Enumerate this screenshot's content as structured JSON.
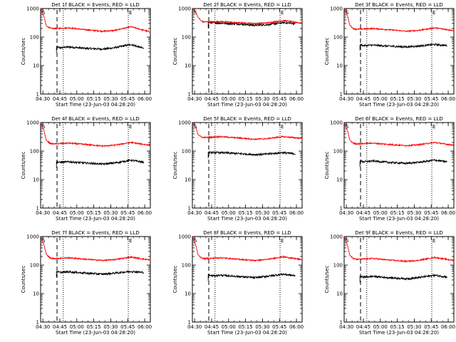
{
  "colors": {
    "events": "#000000",
    "lld": "#ff0000",
    "axis": "#000000",
    "background": "#ffffff"
  },
  "chart_data": [
    {
      "type": "line",
      "title": "Det 1f BLACK = Events, RED = LLD",
      "xlabel": "Start Time (23-Jun-03 04:28:20)",
      "ylabel": "Counts/sec",
      "x_tick_labels": [
        "04:30",
        "04:45",
        "05:00",
        "05:15",
        "05:30",
        "05:45",
        "06:00"
      ],
      "y_tick_labels": [
        "1",
        "10",
        "100",
        "1000"
      ],
      "yscale": "log",
      "ylim": [
        1,
        1000
      ],
      "xlim_minutes": [
        0,
        97
      ],
      "marker_labels": [
        "S",
        "E"
      ],
      "series": [
        {
          "name": "Events",
          "color": "black",
          "x_minutes": [
            14,
            17,
            25,
            40,
            55,
            65,
            80,
            91
          ],
          "values": [
            45,
            42,
            45,
            40,
            38,
            42,
            55,
            40
          ]
        },
        {
          "name": "LLD",
          "color": "red",
          "x_minutes": [
            0,
            3,
            5,
            8,
            10,
            14,
            25,
            40,
            55,
            65,
            80,
            92,
            97
          ],
          "values": [
            1000,
            520,
            250,
            210,
            200,
            200,
            210,
            180,
            160,
            170,
            230,
            170,
            150
          ]
        }
      ]
    },
    {
      "type": "line",
      "title": "Det 2f BLACK = Events, RED = LLD",
      "xlabel": "Start Time (23-Jun-03 04:28:20)",
      "ylabel": "Counts/sec",
      "x_tick_labels": [
        "04:30",
        "04:45",
        "05:00",
        "05:15",
        "05:30",
        "05:45",
        "06:00"
      ],
      "y_tick_labels": [
        "1",
        "10",
        "100",
        "1000"
      ],
      "yscale": "log",
      "ylim": [
        1,
        1000
      ],
      "xlim_minutes": [
        0,
        97
      ],
      "marker_labels": [
        "S",
        "E"
      ],
      "series": [
        {
          "name": "Events",
          "color": "black",
          "x_minutes": [
            14,
            17,
            25,
            40,
            55,
            65,
            80,
            91
          ],
          "values": [
            330,
            320,
            310,
            290,
            260,
            270,
            320,
            300
          ]
        },
        {
          "name": "LLD",
          "color": "red",
          "x_minutes": [
            0,
            3,
            5,
            8,
            10,
            14,
            25,
            40,
            55,
            65,
            80,
            92,
            97
          ],
          "values": [
            1000,
            750,
            500,
            360,
            340,
            340,
            350,
            320,
            300,
            310,
            380,
            330,
            300
          ]
        }
      ]
    },
    {
      "type": "line",
      "title": "Det 3f BLACK = Events, RED = LLD",
      "xlabel": "Start Time (23-Jun-03 04:28:20)",
      "ylabel": "Counts/sec",
      "x_tick_labels": [
        "04:30",
        "04:45",
        "05:00",
        "05:15",
        "05:30",
        "05:45",
        "06:00"
      ],
      "y_tick_labels": [
        "1",
        "10",
        "100",
        "1000"
      ],
      "yscale": "log",
      "ylim": [
        1,
        1000
      ],
      "xlim_minutes": [
        0,
        97
      ],
      "marker_labels": [
        "S",
        "E"
      ],
      "series": [
        {
          "name": "Events",
          "color": "black",
          "x_minutes": [
            14,
            17,
            25,
            40,
            55,
            65,
            80,
            91
          ],
          "values": [
            55,
            50,
            52,
            48,
            45,
            48,
            55,
            50
          ]
        },
        {
          "name": "LLD",
          "color": "red",
          "x_minutes": [
            0,
            3,
            5,
            8,
            10,
            14,
            25,
            40,
            55,
            65,
            80,
            92,
            97
          ],
          "values": [
            1000,
            550,
            260,
            200,
            190,
            190,
            200,
            180,
            160,
            170,
            210,
            180,
            170
          ]
        }
      ]
    },
    {
      "type": "line",
      "title": "Det 4f BLACK = Events, RED = LLD",
      "xlabel": "Start Time (23-Jun-03 04:28:20)",
      "ylabel": "Counts/sec",
      "x_tick_labels": [
        "04:30",
        "04:45",
        "05:00",
        "05:15",
        "05:30",
        "05:45",
        "06:00"
      ],
      "y_tick_labels": [
        "1",
        "10",
        "100",
        "1000"
      ],
      "yscale": "log",
      "ylim": [
        1,
        1000
      ],
      "xlim_minutes": [
        0,
        97
      ],
      "marker_labels": [
        "S",
        "E"
      ],
      "series": [
        {
          "name": "Events",
          "color": "black",
          "x_minutes": [
            14,
            17,
            25,
            40,
            55,
            65,
            80,
            91
          ],
          "values": [
            42,
            40,
            42,
            38,
            35,
            38,
            48,
            40
          ]
        },
        {
          "name": "LLD",
          "color": "red",
          "x_minutes": [
            0,
            3,
            5,
            8,
            10,
            14,
            25,
            40,
            55,
            65,
            80,
            92,
            97
          ],
          "values": [
            1000,
            520,
            240,
            190,
            180,
            180,
            190,
            170,
            150,
            160,
            200,
            170,
            160
          ]
        }
      ]
    },
    {
      "type": "line",
      "title": "Det 5f BLACK = Events, RED = LLD",
      "xlabel": "Start Time (23-Jun-03 04:28:20)",
      "ylabel": "Counts/sec",
      "x_tick_labels": [
        "04:30",
        "04:45",
        "05:00",
        "05:15",
        "05:30",
        "05:45",
        "06:00"
      ],
      "y_tick_labels": [
        "1",
        "10",
        "100",
        "1000"
      ],
      "yscale": "log",
      "ylim": [
        1,
        1000
      ],
      "xlim_minutes": [
        0,
        97
      ],
      "marker_labels": [
        "S",
        "E"
      ],
      "series": [
        {
          "name": "Events",
          "color": "black",
          "x_minutes": [
            14,
            17,
            25,
            40,
            55,
            65,
            80,
            91
          ],
          "values": [
            90,
            88,
            88,
            82,
            75,
            78,
            88,
            80
          ]
        },
        {
          "name": "LLD",
          "color": "red",
          "x_minutes": [
            0,
            3,
            5,
            8,
            10,
            14,
            25,
            40,
            55,
            65,
            80,
            92,
            97
          ],
          "values": [
            1000,
            700,
            380,
            310,
            300,
            300,
            320,
            290,
            260,
            270,
            320,
            290,
            280
          ]
        }
      ]
    },
    {
      "type": "line",
      "title": "Det 6f BLACK = Events, RED = LLD",
      "xlabel": "Start Time (23-Jun-03 04:28:20)",
      "ylabel": "Counts/sec",
      "x_tick_labels": [
        "04:30",
        "04:45",
        "05:00",
        "05:15",
        "05:30",
        "05:45",
        "06:00"
      ],
      "y_tick_labels": [
        "1",
        "10",
        "100",
        "1000"
      ],
      "yscale": "log",
      "ylim": [
        1,
        1000
      ],
      "xlim_minutes": [
        0,
        97
      ],
      "marker_labels": [
        "S",
        "E"
      ],
      "series": [
        {
          "name": "Events",
          "color": "black",
          "x_minutes": [
            14,
            17,
            25,
            40,
            55,
            65,
            80,
            91
          ],
          "values": [
            45,
            42,
            45,
            40,
            37,
            40,
            48,
            42
          ]
        },
        {
          "name": "LLD",
          "color": "red",
          "x_minutes": [
            0,
            3,
            5,
            8,
            10,
            14,
            25,
            40,
            55,
            65,
            80,
            92,
            97
          ],
          "values": [
            1000,
            520,
            240,
            190,
            180,
            180,
            190,
            170,
            155,
            165,
            200,
            170,
            160
          ]
        }
      ]
    },
    {
      "type": "line",
      "title": "Det 7f BLACK = Events, RED = LLD",
      "xlabel": "Start Time (23-Jun-03 04:28:20)",
      "ylabel": "Counts/sec",
      "x_tick_labels": [
        "04:30",
        "04:45",
        "05:00",
        "05:15",
        "05:30",
        "05:45",
        "06:00"
      ],
      "y_tick_labels": [
        "1",
        "10",
        "100",
        "1000"
      ],
      "yscale": "log",
      "ylim": [
        1,
        1000
      ],
      "xlim_minutes": [
        0,
        97
      ],
      "marker_labels": [
        "S",
        "E"
      ],
      "series": [
        {
          "name": "Events",
          "color": "black",
          "x_minutes": [
            14,
            17,
            25,
            40,
            55,
            65,
            80,
            91
          ],
          "values": [
            60,
            55,
            58,
            52,
            48,
            52,
            60,
            55
          ]
        },
        {
          "name": "LLD",
          "color": "red",
          "x_minutes": [
            0,
            3,
            5,
            8,
            10,
            14,
            25,
            40,
            55,
            65,
            80,
            92,
            97
          ],
          "values": [
            1000,
            520,
            240,
            180,
            170,
            170,
            180,
            160,
            145,
            155,
            190,
            160,
            150
          ]
        }
      ]
    },
    {
      "type": "line",
      "title": "Det 8f BLACK = Events, RED = LLD",
      "xlabel": "Start Time (23-Jun-03 04:28:20)",
      "ylabel": "Counts/sec",
      "x_tick_labels": [
        "04:30",
        "04:45",
        "05:00",
        "05:15",
        "05:30",
        "05:45",
        "06:00"
      ],
      "y_tick_labels": [
        "1",
        "10",
        "100",
        "1000"
      ],
      "yscale": "log",
      "ylim": [
        1,
        1000
      ],
      "xlim_minutes": [
        0,
        97
      ],
      "marker_labels": [
        "S",
        "E"
      ],
      "series": [
        {
          "name": "Events",
          "color": "black",
          "x_minutes": [
            14,
            17,
            25,
            40,
            55,
            65,
            80,
            91
          ],
          "values": [
            45,
            42,
            44,
            40,
            36,
            40,
            48,
            42
          ]
        },
        {
          "name": "LLD",
          "color": "red",
          "x_minutes": [
            0,
            3,
            5,
            8,
            10,
            14,
            25,
            40,
            55,
            65,
            80,
            92,
            97
          ],
          "values": [
            1000,
            500,
            230,
            180,
            170,
            170,
            180,
            160,
            145,
            155,
            195,
            165,
            155
          ]
        }
      ]
    },
    {
      "type": "line",
      "title": "Det 9f BLACK = Events, RED = LLD",
      "xlabel": "Start Time (23-Jun-03 04:28:20)",
      "ylabel": "Counts/sec",
      "x_tick_labels": [
        "04:30",
        "04:45",
        "05:00",
        "05:15",
        "05:30",
        "05:45",
        "06:00"
      ],
      "y_tick_labels": [
        "1",
        "10",
        "100",
        "1000"
      ],
      "yscale": "log",
      "ylim": [
        1,
        1000
      ],
      "xlim_minutes": [
        0,
        97
      ],
      "marker_labels": [
        "S",
        "E"
      ],
      "series": [
        {
          "name": "Events",
          "color": "black",
          "x_minutes": [
            14,
            17,
            25,
            40,
            55,
            65,
            80,
            91
          ],
          "values": [
            40,
            38,
            40,
            36,
            33,
            36,
            44,
            38
          ]
        },
        {
          "name": "LLD",
          "color": "red",
          "x_minutes": [
            0,
            3,
            5,
            8,
            10,
            14,
            25,
            40,
            55,
            65,
            80,
            92,
            97
          ],
          "values": [
            1000,
            480,
            220,
            170,
            160,
            160,
            170,
            150,
            135,
            145,
            185,
            155,
            145
          ]
        }
      ]
    }
  ]
}
